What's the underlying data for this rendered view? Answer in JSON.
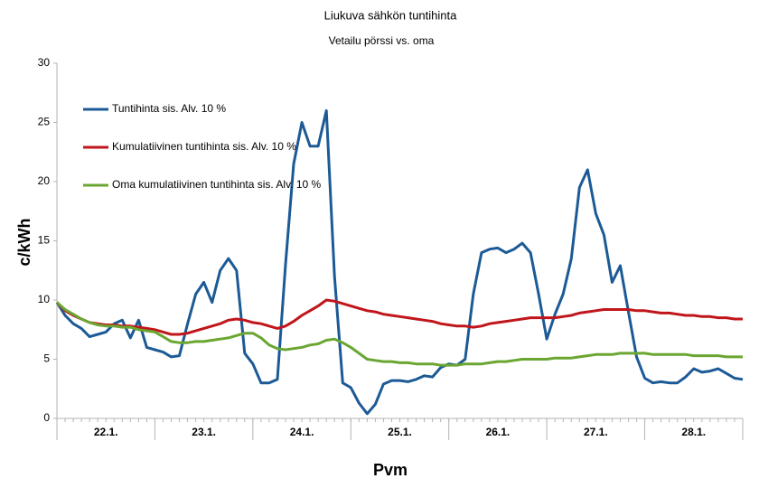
{
  "chart_data": {
    "type": "line",
    "title": "Liukuva sähkön tuntihinta",
    "subtitle": "Vetailu pörssi vs. oma",
    "x_label": "Pvm",
    "y_label": "c/kWh",
    "categories": [
      "22.1.",
      null,
      null,
      null,
      null,
      null,
      null,
      null,
      null,
      null,
      null,
      null,
      "23.1.",
      null,
      null,
      null,
      null,
      null,
      null,
      null,
      null,
      null,
      null,
      null,
      "24.1.",
      null,
      null,
      null,
      null,
      null,
      null,
      null,
      null,
      null,
      null,
      null,
      "25.1.",
      null,
      null,
      null,
      null,
      null,
      null,
      null,
      null,
      null,
      null,
      null,
      "26.1.",
      null,
      null,
      null,
      null,
      null,
      null,
      null,
      null,
      null,
      null,
      null,
      "27.1.",
      null,
      null,
      null,
      null,
      null,
      null,
      null,
      null,
      null,
      null,
      null,
      "28.1.",
      null,
      null,
      null,
      null,
      null,
      null,
      null,
      null,
      null,
      null,
      null,
      null
    ],
    "series": [
      {
        "name": "Tuntihinta sis. Alv. 10 %",
        "color": "#1c5a96",
        "values": [
          9.8,
          8.7,
          8.0,
          7.6,
          6.9,
          7.1,
          7.3,
          8.0,
          8.3,
          6.8,
          8.3,
          6.0,
          5.8,
          5.6,
          5.2,
          5.3,
          8.0,
          10.5,
          11.5,
          9.8,
          12.5,
          13.5,
          12.5,
          5.5,
          4.6,
          3.0,
          3.0,
          3.3,
          13.0,
          21.5,
          25.0,
          23.0,
          23.0,
          26.0,
          12.0,
          3.0,
          2.6,
          1.3,
          0.4,
          1.2,
          2.9,
          3.2,
          3.2,
          3.1,
          3.3,
          3.6,
          3.5,
          4.3,
          4.6,
          4.5,
          5.0,
          10.5,
          14.0,
          14.3,
          14.4,
          14.0,
          14.3,
          14.8,
          14.0,
          10.5,
          6.7,
          8.8,
          10.5,
          13.5,
          19.5,
          21.0,
          17.3,
          15.5,
          11.5,
          12.9,
          9.0,
          5.2,
          3.4,
          3.0,
          3.1,
          3.0,
          3.0,
          3.5,
          4.2,
          3.9,
          4.0,
          4.2,
          3.8,
          3.4,
          3.3
        ]
      },
      {
        "name": "Kumulatiivinen tuntihinta sis. Alv. 10 %",
        "color": "#c0161b",
        "values": [
          9.8,
          9.1,
          8.7,
          8.4,
          8.1,
          8.0,
          7.9,
          7.9,
          7.8,
          7.8,
          7.7,
          7.6,
          7.5,
          7.3,
          7.1,
          7.1,
          7.2,
          7.4,
          7.6,
          7.8,
          8.0,
          8.3,
          8.4,
          8.3,
          8.1,
          8.0,
          7.8,
          7.6,
          7.8,
          8.2,
          8.7,
          9.1,
          9.5,
          10.0,
          9.9,
          9.7,
          9.5,
          9.3,
          9.1,
          9.0,
          8.8,
          8.7,
          8.6,
          8.5,
          8.4,
          8.3,
          8.2,
          8.0,
          7.9,
          7.8,
          7.8,
          7.7,
          7.8,
          8.0,
          8.1,
          8.2,
          8.3,
          8.4,
          8.5,
          8.5,
          8.5,
          8.5,
          8.6,
          8.7,
          8.9,
          9.0,
          9.1,
          9.2,
          9.2,
          9.2,
          9.2,
          9.1,
          9.1,
          9.0,
          8.9,
          8.9,
          8.8,
          8.7,
          8.7,
          8.6,
          8.6,
          8.5,
          8.5,
          8.4,
          8.4
        ]
      },
      {
        "name": "Oma kumulatiivinen tuntihinta sis. Alv. 10 %",
        "color": "#6aa631",
        "values": [
          9.8,
          9.2,
          8.8,
          8.4,
          8.1,
          7.9,
          7.8,
          7.8,
          7.7,
          7.7,
          7.5,
          7.4,
          7.3,
          6.9,
          6.5,
          6.4,
          6.4,
          6.5,
          6.5,
          6.6,
          6.7,
          6.8,
          7.0,
          7.2,
          7.2,
          6.8,
          6.2,
          5.9,
          5.8,
          5.9,
          6.0,
          6.2,
          6.3,
          6.6,
          6.7,
          6.4,
          6.0,
          5.5,
          5.0,
          4.9,
          4.8,
          4.8,
          4.7,
          4.7,
          4.6,
          4.6,
          4.6,
          4.5,
          4.5,
          4.5,
          4.6,
          4.6,
          4.6,
          4.7,
          4.8,
          4.8,
          4.9,
          5.0,
          5.0,
          5.0,
          5.0,
          5.1,
          5.1,
          5.1,
          5.2,
          5.3,
          5.4,
          5.4,
          5.4,
          5.5,
          5.5,
          5.5,
          5.5,
          5.4,
          5.4,
          5.4,
          5.4,
          5.4,
          5.3,
          5.3,
          5.3,
          5.3,
          5.2,
          5.2,
          5.2
        ]
      }
    ],
    "ylim": [
      0,
      30
    ],
    "yticks": [
      0,
      5,
      10,
      15,
      20,
      25,
      30
    ],
    "grid": false,
    "legend": "top-left"
  }
}
